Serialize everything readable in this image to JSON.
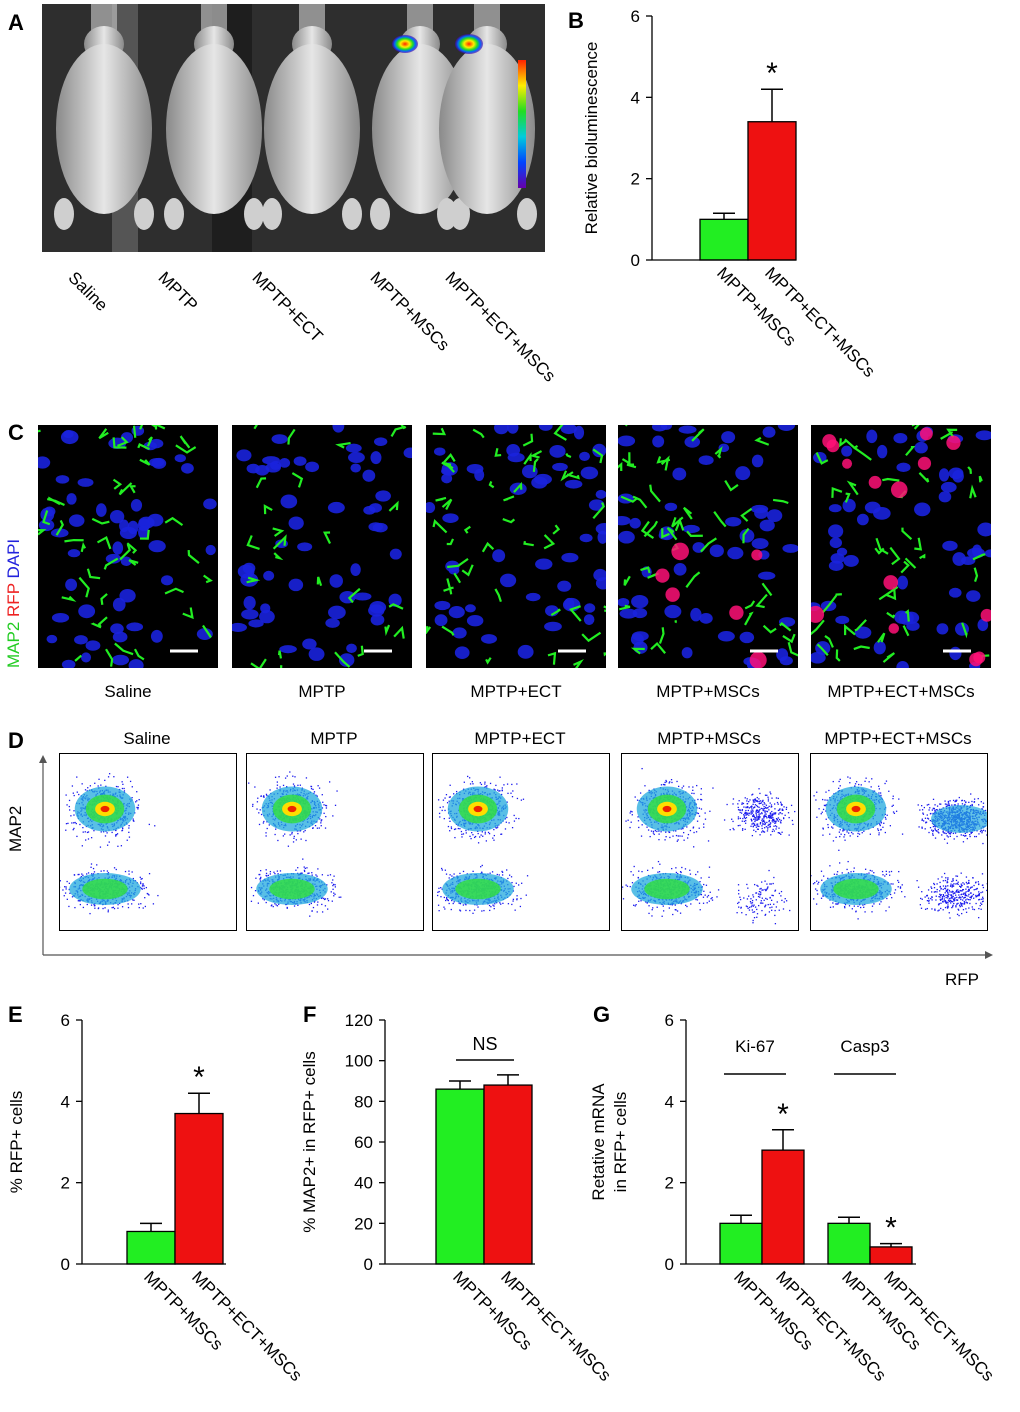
{
  "panels": {
    "A": {
      "letter": "A",
      "groups": [
        "Saline",
        "MPTP",
        "MPTP+ECT",
        "MPTP+MSCs",
        "MPTP+ECT+MSCs"
      ]
    },
    "C": {
      "letter": "C",
      "stain_labels": [
        {
          "text": "MAP2",
          "color": "#22cc22"
        },
        {
          "text": "RFP",
          "color": "#ee2222"
        },
        {
          "text": "DAPI",
          "color": "#2222dd"
        }
      ],
      "groups": [
        "Saline",
        "MPTP",
        "MPTP+ECT",
        "MPTP+MSCs",
        "MPTP+ECT+MSCs"
      ]
    },
    "D": {
      "letter": "D",
      "groups": [
        "Saline",
        "MPTP",
        "MPTP+ECT",
        "MPTP+MSCs",
        "MPTP+ECT+MSCs"
      ],
      "y_axis_label": "MAP2",
      "x_axis_label": "RFP"
    }
  },
  "colors": {
    "green": "#22ee22",
    "red": "#ee1111",
    "black": "#000000"
  },
  "chart_data": [
    {
      "panel": "B",
      "type": "bar",
      "categories": [
        "MPTP+MSCs",
        "MPTP+ECT+MSCs"
      ],
      "values": [
        1.0,
        3.4
      ],
      "errors": [
        0.15,
        0.8
      ],
      "ylabel": "Relative bioluminescence",
      "ylim": [
        0,
        6
      ],
      "yticks": [
        0,
        2,
        4,
        6
      ],
      "annotations": [
        {
          "text": "*",
          "category": "MPTP+ECT+MSCs"
        }
      ]
    },
    {
      "panel": "E",
      "type": "bar",
      "categories": [
        "MPTP+MSCs",
        "MPTP+ECT+MSCs"
      ],
      "values": [
        0.8,
        3.7
      ],
      "errors": [
        0.2,
        0.5
      ],
      "ylabel": "% RFP+ cells",
      "ylim": [
        0,
        6
      ],
      "yticks": [
        0,
        2,
        4,
        6
      ],
      "annotations": [
        {
          "text": "*",
          "category": "MPTP+ECT+MSCs"
        }
      ]
    },
    {
      "panel": "F",
      "type": "bar",
      "categories": [
        "MPTP+MSCs",
        "MPTP+ECT+MSCs"
      ],
      "values": [
        86,
        88
      ],
      "errors": [
        4,
        5
      ],
      "ylabel": "% MAP2+ in RFP+ cells",
      "ylim": [
        0,
        120
      ],
      "yticks": [
        0,
        20,
        40,
        60,
        80,
        100,
        120
      ],
      "annotations": [
        {
          "text": "NS",
          "category": "bracket"
        }
      ]
    },
    {
      "panel": "G",
      "type": "bar",
      "categories": [
        "MPTP+MSCs",
        "MPTP+ECT+MSCs",
        "MPTP+MSCs",
        "MPTP+ECT+MSCs"
      ],
      "groups": [
        {
          "name": "Ki-67",
          "values": [
            1.0,
            2.8
          ],
          "errors": [
            0.2,
            0.5
          ]
        },
        {
          "name": "Casp3",
          "values": [
            1.0,
            0.42
          ],
          "errors": [
            0.15,
            0.08
          ]
        }
      ],
      "ylabel": "Retative mRNA in RFP+ cells",
      "ylabel_lines": [
        "Retative mRNA",
        "in RFP+ cells"
      ],
      "ylim": [
        0,
        6
      ],
      "yticks": [
        0,
        2,
        4,
        6
      ],
      "annotations": [
        {
          "text": "*",
          "category": "Ki-67 MPTP+ECT+MSCs"
        },
        {
          "text": "*",
          "category": "Casp3 MPTP+ECT+MSCs"
        }
      ]
    }
  ]
}
